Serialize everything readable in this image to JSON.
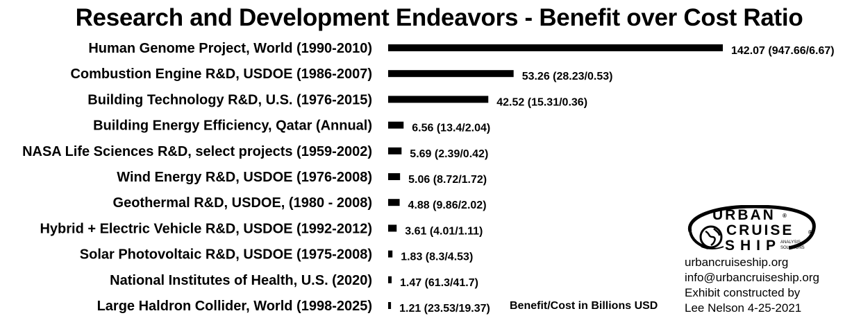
{
  "chart_data": {
    "type": "bar",
    "orientation": "horizontal",
    "title": "Research and Development Endeavors - Benefit over Cost Ratio",
    "xlabel": "",
    "ylabel": "",
    "grid": false,
    "legend": "none",
    "xlim": [
      0,
      142.07
    ],
    "bar_color": "#000000",
    "categories": [
      "Human Genome Project, World (1990-2010)",
      "Combustion Engine R&D, USDOE (1986-2007)",
      "Building Technology R&D, U.S. (1976-2015)",
      "Building Energy Efficiency, Qatar (Annual)",
      "NASA Life Sciences R&D, select projects (1959-2002)",
      "Wind Energy R&D, USDOE (1976-2008)",
      "Geothermal R&D, USDOE, (1980 - 2008)",
      "Hybrid + Electric Vehicle R&D, USDOE (1992-2012)",
      "Solar Photovoltaic R&D, USDOE (1975-2008)",
      "National Institutes of Health, U.S. (2020)",
      "Large Haldron Collider, World (1998-2025)"
    ],
    "values": [
      142.07,
      53.26,
      42.52,
      6.56,
      5.69,
      5.06,
      4.88,
      3.61,
      1.83,
      1.47,
      1.21
    ],
    "data_labels": [
      "142.07 (947.66/6.67)",
      "53.26 (28.23/0.53)",
      "42.52 (15.31/0.36)",
      "6.56 (13.4/2.04)",
      "5.69 (2.39/0.42)",
      "5.06 (8.72/1.72)",
      "4.88 (9.86/2.02)",
      "3.61 (4.01/1.11)",
      "1.83 (8.3/4.53)",
      "1.47 (61.3/41.7)",
      "1.21 (23.53/19.37)"
    ],
    "annotation": "Benefit/Cost in Billions USD"
  },
  "logo": {
    "line1": "URBAN",
    "line2": "CRUISE",
    "line3": "SHIP",
    "tag1": "ANALYSIS",
    "tag2": "SOLUTIONS",
    "reg_mark": "®"
  },
  "contact": {
    "website": "urbancruiseship.org",
    "email": "info@urbancruiseship.org",
    "credit_line1": "Exhibit constructed by",
    "credit_line2": "Lee Nelson 4-25-2021"
  }
}
